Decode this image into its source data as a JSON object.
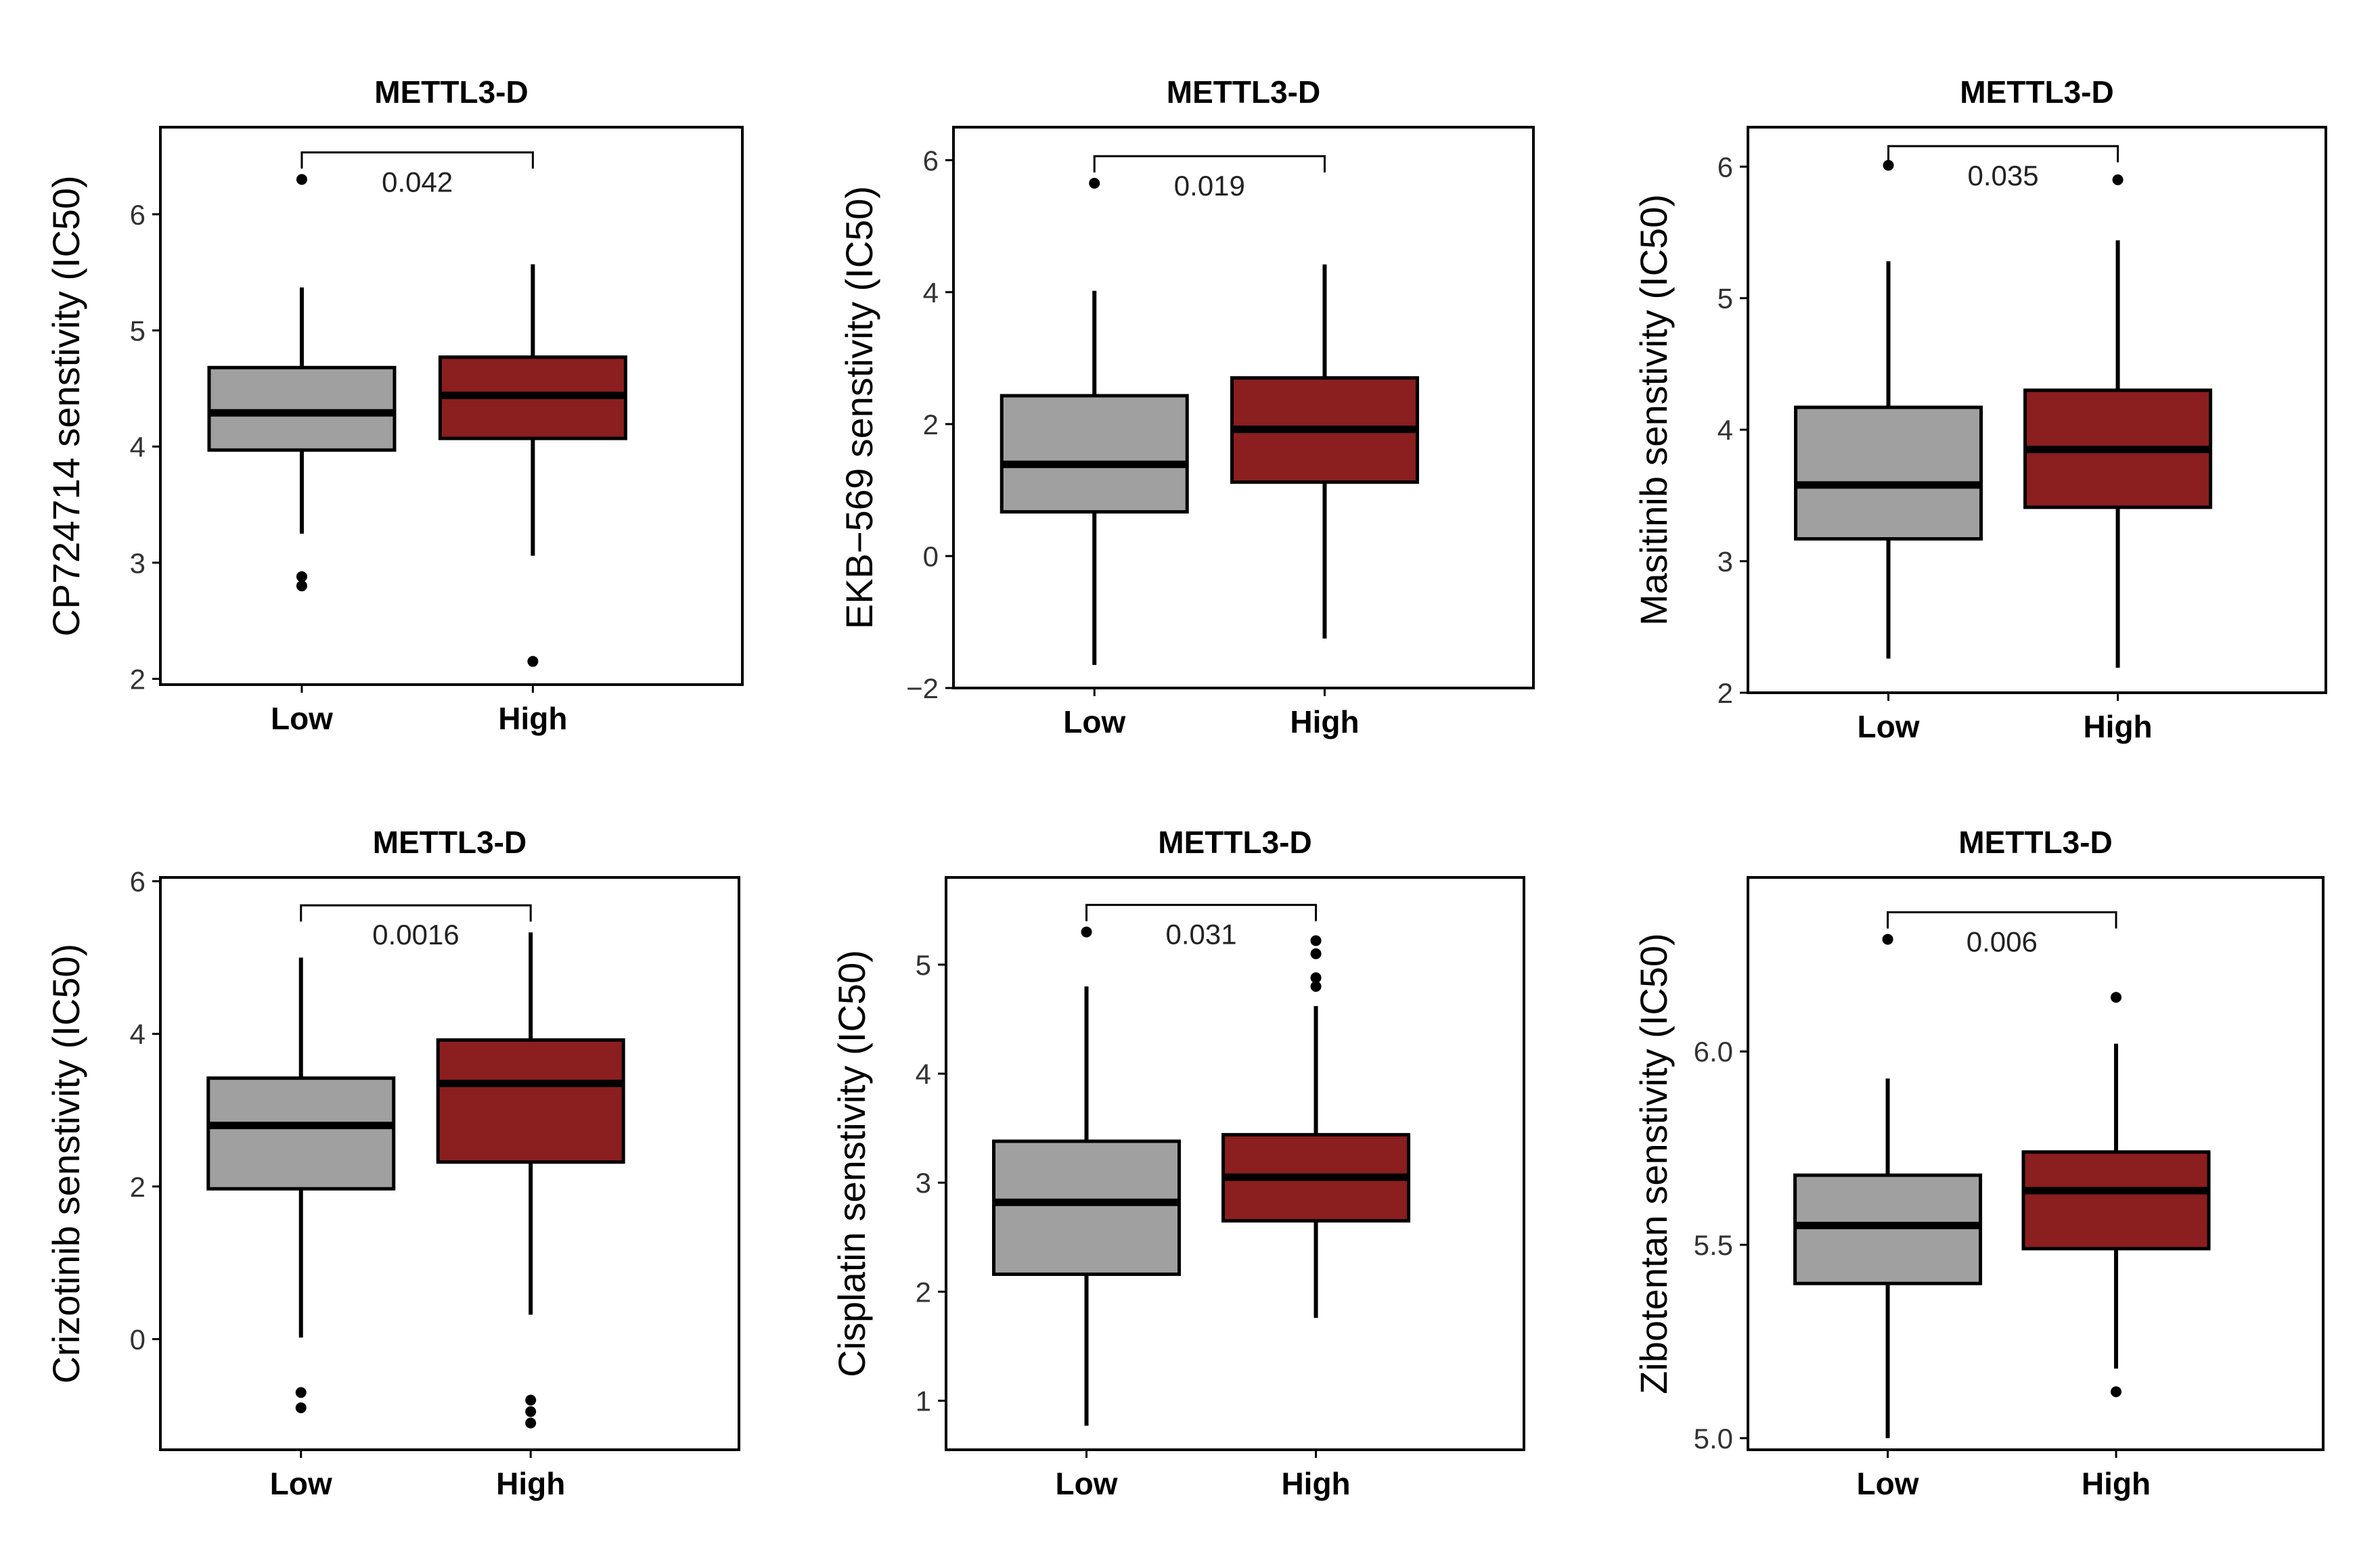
{
  "colors": {
    "low_fill": "#a0a0a0",
    "high_fill": "#8b1e1e",
    "outline": "#000000",
    "background": "#ffffff"
  },
  "chart_data": [
    {
      "type": "box",
      "title": "METTL3-D",
      "ylabel": "CP724714 senstivity (IC50)",
      "ylim": [
        1.95,
        6.75
      ],
      "yticks": [
        2,
        3,
        4,
        5,
        6
      ],
      "tick_labels": [
        "2",
        "3",
        "4",
        "5",
        "6"
      ],
      "categories": [
        "Low",
        "High"
      ],
      "pvalue": "0.042",
      "grid": false,
      "boxes": [
        {
          "group": "Low",
          "min": 3.25,
          "q1": 3.97,
          "median": 4.29,
          "q3": 4.68,
          "max": 5.37,
          "outliers": [
            6.3,
            2.88,
            2.8
          ]
        },
        {
          "group": "High",
          "min": 3.06,
          "q1": 4.07,
          "median": 4.44,
          "q3": 4.77,
          "max": 5.57,
          "outliers": [
            2.15
          ]
        }
      ]
    },
    {
      "type": "box",
      "title": "METTL3-D",
      "ylabel": "EKB−569 senstivity (IC50)",
      "ylim": [
        -2,
        6.5
      ],
      "yticks": [
        -2,
        0,
        2,
        4,
        6
      ],
      "tick_labels": [
        "−2",
        "0",
        "2",
        "4",
        "6"
      ],
      "categories": [
        "Low",
        "High"
      ],
      "pvalue": "0.019",
      "grid": false,
      "boxes": [
        {
          "group": "Low",
          "min": -1.65,
          "q1": 0.67,
          "median": 1.39,
          "q3": 2.43,
          "max": 4.02,
          "outliers": [
            5.65
          ]
        },
        {
          "group": "High",
          "min": -1.25,
          "q1": 1.12,
          "median": 1.92,
          "q3": 2.7,
          "max": 4.42,
          "outliers": []
        }
      ]
    },
    {
      "type": "box",
      "title": "METTL3-D",
      "ylabel": "Masitinib senstivity (IC50)",
      "ylim": [
        2,
        6.3
      ],
      "yticks": [
        2,
        3,
        4,
        5,
        6
      ],
      "tick_labels": [
        "2",
        "3",
        "4",
        "5",
        "6"
      ],
      "categories": [
        "Low",
        "High"
      ],
      "pvalue": "0.035",
      "grid": false,
      "boxes": [
        {
          "group": "Low",
          "min": 2.26,
          "q1": 3.17,
          "median": 3.58,
          "q3": 4.17,
          "max": 5.28,
          "outliers": [
            6.01
          ]
        },
        {
          "group": "High",
          "min": 2.19,
          "q1": 3.41,
          "median": 3.85,
          "q3": 4.3,
          "max": 5.44,
          "outliers": [
            5.9
          ]
        }
      ]
    },
    {
      "type": "box",
      "title": "METTL3-D",
      "ylabel": "Crizotinib senstivity (IC50)",
      "ylim": [
        -1.45,
        6.05
      ],
      "yticks": [
        0,
        2,
        4,
        6
      ],
      "tick_labels": [
        "0",
        "2",
        "4",
        "6"
      ],
      "categories": [
        "Low",
        "High"
      ],
      "pvalue": "0.0016",
      "grid": false,
      "boxes": [
        {
          "group": "Low",
          "min": 0.02,
          "q1": 1.97,
          "median": 2.8,
          "q3": 3.42,
          "max": 5.0,
          "outliers": [
            -0.7,
            -0.9
          ]
        },
        {
          "group": "High",
          "min": 0.32,
          "q1": 2.32,
          "median": 3.35,
          "q3": 3.92,
          "max": 5.33,
          "outliers": [
            -0.8,
            -0.95,
            -1.1
          ]
        }
      ]
    },
    {
      "type": "box",
      "title": "METTL3-D",
      "ylabel": "Cisplatin senstivity (IC50)",
      "ylim": [
        0.55,
        5.8
      ],
      "yticks": [
        1,
        2,
        3,
        4,
        5
      ],
      "tick_labels": [
        "1",
        "2",
        "3",
        "4",
        "5"
      ],
      "categories": [
        "Low",
        "High"
      ],
      "pvalue": "0.031",
      "grid": false,
      "boxes": [
        {
          "group": "Low",
          "min": 0.77,
          "q1": 2.16,
          "median": 2.82,
          "q3": 3.38,
          "max": 4.8,
          "outliers": [
            5.3
          ]
        },
        {
          "group": "High",
          "min": 1.76,
          "q1": 2.65,
          "median": 3.05,
          "q3": 3.44,
          "max": 4.62,
          "outliers": [
            5.22,
            5.1,
            4.88,
            4.8
          ]
        }
      ]
    },
    {
      "type": "box",
      "title": "METTL3-D",
      "ylabel": "Zibotentan senstivity (IC50)",
      "ylim": [
        4.97,
        6.45
      ],
      "yticks": [
        5.0,
        5.5,
        6.0
      ],
      "tick_labels": [
        "5.0",
        "5.5",
        "6.0"
      ],
      "categories": [
        "Low",
        "High"
      ],
      "pvalue": "0.006",
      "grid": false,
      "boxes": [
        {
          "group": "Low",
          "min": 5.0,
          "q1": 5.4,
          "median": 5.55,
          "q3": 5.68,
          "max": 5.93,
          "outliers": [
            6.29
          ]
        },
        {
          "group": "High",
          "min": 5.18,
          "q1": 5.49,
          "median": 5.64,
          "q3": 5.74,
          "max": 6.02,
          "outliers": [
            6.14,
            5.12
          ]
        }
      ]
    }
  ]
}
